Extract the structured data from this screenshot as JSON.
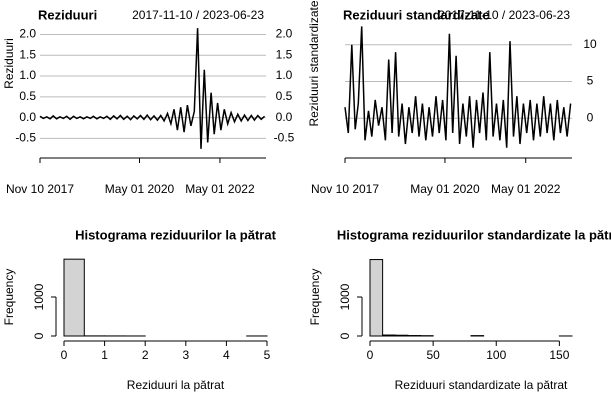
{
  "chart_data": [
    {
      "type": "line",
      "title": "Reziduuri",
      "subtitle": "2017-11-10 / 2023-06-23",
      "y_label": "Reziduuri",
      "yaxis": "both",
      "grid": true,
      "color": "#000000",
      "x": [
        "2017-11-10",
        "2017-12-10",
        "2018-01-10",
        "2018-02-10",
        "2018-03-10",
        "2018-04-10",
        "2018-05-10",
        "2018-06-10",
        "2018-07-10",
        "2018-08-10",
        "2018-09-10",
        "2018-10-10",
        "2018-11-10",
        "2018-12-10",
        "2019-01-10",
        "2019-02-10",
        "2019-03-10",
        "2019-04-10",
        "2019-05-10",
        "2019-06-10",
        "2019-07-10",
        "2019-08-10",
        "2019-09-10",
        "2019-10-10",
        "2019-11-10",
        "2019-12-10",
        "2020-01-10",
        "2020-02-10",
        "2020-03-10",
        "2020-04-10",
        "2020-05-10",
        "2020-06-10",
        "2020-07-10",
        "2020-08-10",
        "2020-09-10",
        "2020-10-10",
        "2020-11-10",
        "2020-12-10",
        "2021-01-10",
        "2021-02-10",
        "2021-03-10",
        "2021-04-10",
        "2021-05-10",
        "2021-06-10",
        "2021-07-10",
        "2021-08-10",
        "2021-09-10",
        "2021-10-10",
        "2021-11-10",
        "2021-12-10",
        "2022-01-10",
        "2022-02-10",
        "2022-03-10",
        "2022-04-10",
        "2022-05-10",
        "2022-06-10",
        "2022-07-10",
        "2022-08-10",
        "2022-09-10",
        "2022-10-10",
        "2022-11-10",
        "2022-12-10",
        "2023-01-10",
        "2023-02-10",
        "2023-03-10",
        "2023-04-10",
        "2023-05-10",
        "2023-06-10"
      ],
      "values": [
        0.03,
        -0.02,
        0.02,
        -0.03,
        0.04,
        -0.03,
        0.02,
        -0.02,
        0.03,
        -0.04,
        0.03,
        -0.02,
        0.02,
        -0.03,
        0.02,
        -0.02,
        0.03,
        -0.03,
        0.02,
        -0.02,
        0.03,
        -0.04,
        0.04,
        -0.03,
        0.05,
        -0.04,
        0.03,
        -0.05,
        0.04,
        -0.03,
        0.05,
        -0.04,
        0.06,
        -0.05,
        0.04,
        -0.06,
        0.05,
        -0.08,
        0.1,
        -0.15,
        0.2,
        -0.3,
        0.25,
        -0.35,
        0.3,
        -0.2,
        0.15,
        2.15,
        -0.75,
        1.15,
        -0.6,
        0.6,
        -0.4,
        0.35,
        -0.3,
        0.2,
        -0.15,
        0.12,
        -0.1,
        0.08,
        -0.08,
        0.06,
        -0.07,
        0.05,
        -0.06,
        0.05,
        -0.04,
        0.03
      ],
      "xlim": [
        "2017-11-10",
        "2023-06-23"
      ],
      "xticks": [
        {
          "value": "2017-11-10",
          "label": "Nov 10 2017"
        },
        {
          "value": "2020-05-01",
          "label": "May 01 2020"
        },
        {
          "value": "2022-05-01",
          "label": "May 01 2022"
        }
      ],
      "ylim": [
        -0.9,
        2.3
      ],
      "yticks": [
        -0.5,
        {
          "value": 0,
          "label": "0.0"
        },
        0.5,
        {
          "value": 1,
          "label": "1.0"
        },
        1.5,
        {
          "value": 2,
          "label": "2.0"
        }
      ]
    },
    {
      "type": "line",
      "title": "Reziduuri standardizate",
      "subtitle": "2017-11-10 / 2023-06-23",
      "y_label": "Reziduuri standardizate",
      "yaxis": "right",
      "grid": true,
      "color": "#000000",
      "x": [
        "2017-11-10",
        "2017-12-10",
        "2018-01-10",
        "2018-02-10",
        "2018-03-10",
        "2018-04-10",
        "2018-05-10",
        "2018-06-10",
        "2018-07-10",
        "2018-08-10",
        "2018-09-10",
        "2018-10-10",
        "2018-11-10",
        "2018-12-10",
        "2019-01-10",
        "2019-02-10",
        "2019-03-10",
        "2019-04-10",
        "2019-05-10",
        "2019-06-10",
        "2019-07-10",
        "2019-08-10",
        "2019-09-10",
        "2019-10-10",
        "2019-11-10",
        "2019-12-10",
        "2020-01-10",
        "2020-02-10",
        "2020-03-10",
        "2020-04-10",
        "2020-05-10",
        "2020-06-10",
        "2020-07-10",
        "2020-08-10",
        "2020-09-10",
        "2020-10-10",
        "2020-11-10",
        "2020-12-10",
        "2021-01-10",
        "2021-02-10",
        "2021-03-10",
        "2021-04-10",
        "2021-05-10",
        "2021-06-10",
        "2021-07-10",
        "2021-08-10",
        "2021-09-10",
        "2021-10-10",
        "2021-11-10",
        "2021-12-10",
        "2022-01-10",
        "2022-02-10",
        "2022-03-10",
        "2022-04-10",
        "2022-05-10",
        "2022-06-10",
        "2022-07-10",
        "2022-08-10",
        "2022-09-10",
        "2022-10-10",
        "2022-11-10",
        "2022-12-10",
        "2023-01-10",
        "2023-02-10",
        "2023-03-10",
        "2023-04-10",
        "2023-05-10",
        "2023-06-10"
      ],
      "values": [
        1.5,
        -2,
        10,
        -1.5,
        2,
        12.5,
        -3,
        1,
        -2.5,
        2.5,
        -1,
        1.5,
        -3,
        8,
        -2,
        9,
        -2.5,
        2,
        -3.5,
        1.5,
        -2,
        3,
        -2.5,
        2,
        -3,
        1.5,
        -2.5,
        3,
        -2,
        2.5,
        -3,
        11.5,
        -2,
        8.5,
        -3.5,
        2,
        -2.5,
        3,
        -4,
        2.5,
        -2,
        3.5,
        -3,
        9,
        -2.5,
        2,
        -3,
        2.5,
        -4,
        10.5,
        -2.5,
        3,
        -3.5,
        2,
        -2,
        2.5,
        -3,
        2,
        -2.5,
        3,
        -2,
        2,
        -3,
        2.5,
        -2,
        1.5,
        -2.5,
        2
      ],
      "xlim": [
        "2017-11-10",
        "2023-06-23"
      ],
      "xticks": [
        {
          "value": "2017-11-10",
          "label": "Nov 10 2017"
        },
        {
          "value": "2020-05-01",
          "label": "May 01 2020"
        },
        {
          "value": "2022-05-01",
          "label": "May 01 2022"
        }
      ],
      "ylim": [
        -5,
        13.1
      ],
      "yticks": [
        0,
        5,
        10
      ]
    },
    {
      "type": "histogram",
      "title": "Histograma reziduurilor la pătrat",
      "x_label": "Reziduuri la pătrat",
      "y_label": "Frequency",
      "color": "#d3d3d3",
      "bins": [
        0,
        0.5,
        1,
        1.5,
        2,
        2.5,
        3,
        3.5,
        4,
        4.5,
        5
      ],
      "counts": [
        1970,
        3,
        2,
        1,
        0,
        0,
        0,
        0,
        0,
        1
      ],
      "xlim": [
        0,
        5
      ],
      "xticks": [
        0,
        1,
        2,
        3,
        4,
        5
      ],
      "ylim": [
        0,
        2000
      ],
      "yticks": [
        0,
        1000
      ]
    },
    {
      "type": "histogram",
      "title": "Histograma reziduurilor standardizate la pătrat",
      "x_label": "Reziduuri standardizate la pătrat",
      "y_label": "Frequency",
      "color": "#d3d3d3",
      "bins": [
        0,
        10,
        20,
        30,
        40,
        50,
        60,
        70,
        80,
        90,
        100,
        110,
        120,
        130,
        140,
        150,
        160
      ],
      "counts": [
        1960,
        25,
        20,
        12,
        8,
        0,
        0,
        0,
        10,
        0,
        0,
        0,
        0,
        0,
        0,
        1
      ],
      "xlim": [
        0,
        160
      ],
      "xticks": [
        0,
        50,
        100,
        150
      ],
      "ylim": [
        0,
        2000
      ],
      "yticks": [
        0,
        1000
      ]
    }
  ]
}
